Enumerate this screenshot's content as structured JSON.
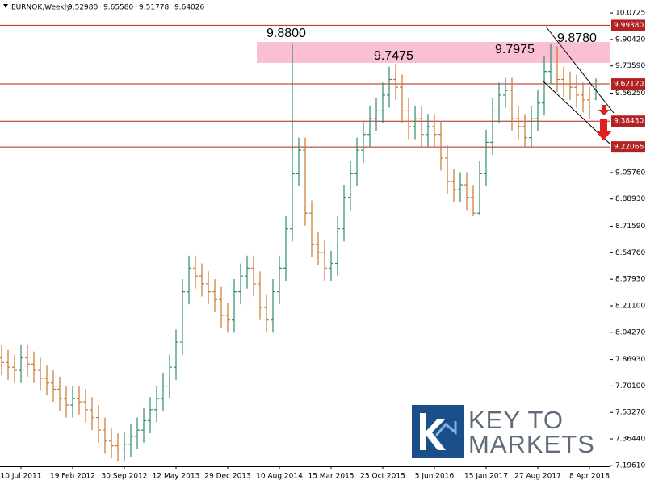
{
  "header": {
    "symbol": "EURNOK,Weekly",
    "open": "9.52980",
    "high": "9.65580",
    "low": "9.51778",
    "close": "9.64026"
  },
  "logo": {
    "line1": "KEY TO",
    "line2": "MARKETS"
  },
  "chart_data": {
    "type": "ohlc",
    "up_color": "#2e8b6e",
    "down_color": "#c8782e",
    "categories": [
      null,
      null,
      null,
      "10 Jul 2011",
      null,
      null,
      null,
      null,
      null,
      null,
      null,
      "19 Feb 2012",
      null,
      null,
      null,
      null,
      null,
      null,
      null,
      "30 Sep 2012",
      null,
      null,
      null,
      null,
      null,
      null,
      null,
      "12 May 2013",
      null,
      null,
      null,
      null,
      null,
      null,
      null,
      "29 Dec 2013",
      null,
      null,
      null,
      null,
      null,
      null,
      null,
      "10 Aug 2014",
      null,
      null,
      null,
      null,
      null,
      null,
      null,
      "15 Mar 2015",
      null,
      null,
      null,
      null,
      null,
      null,
      null,
      "25 Oct 2015",
      null,
      null,
      null,
      null,
      null,
      null,
      null,
      "5 Jun 2016",
      null,
      null,
      null,
      null,
      null,
      null,
      null,
      "15 Jan 2017",
      null,
      null,
      null,
      null,
      null,
      null,
      null,
      "27 Aug 2017",
      null,
      null,
      null,
      null,
      null,
      null,
      null,
      "8 Apr 2018",
      null
    ],
    "open": [
      7.88,
      7.85,
      7.82,
      7.8,
      7.88,
      7.84,
      7.8,
      7.75,
      7.72,
      7.68,
      7.62,
      7.58,
      7.62,
      7.6,
      7.55,
      7.5,
      7.42,
      7.35,
      7.32,
      7.3,
      7.33,
      7.38,
      7.42,
      7.48,
      7.55,
      7.62,
      7.7,
      7.82,
      7.98,
      8.3,
      8.45,
      8.4,
      8.35,
      8.3,
      8.25,
      8.15,
      8.12,
      8.3,
      8.4,
      8.45,
      8.35,
      8.2,
      8.12,
      8.3,
      8.45,
      8.7,
      9.05,
      9.2,
      8.8,
      8.6,
      8.55,
      8.45,
      8.48,
      8.7,
      8.9,
      9.05,
      9.2,
      9.3,
      9.4,
      9.45,
      9.55,
      9.65,
      9.6,
      9.45,
      9.35,
      9.4,
      9.3,
      9.35,
      9.3,
      9.15,
      9.0,
      8.95,
      8.98,
      8.9,
      8.8,
      9.05,
      9.25,
      9.45,
      9.55,
      9.58,
      9.4,
      9.35,
      9.28,
      9.4,
      9.5,
      9.7,
      9.85,
      9.65,
      9.62,
      9.6,
      9.55,
      9.52,
      9.5298
    ],
    "high": [
      7.96,
      7.93,
      7.9,
      7.96,
      7.96,
      7.92,
      7.88,
      7.83,
      7.8,
      7.76,
      7.7,
      7.7,
      7.7,
      7.68,
      7.63,
      7.58,
      7.5,
      7.43,
      7.4,
      7.41,
      7.46,
      7.5,
      7.56,
      7.63,
      7.7,
      7.78,
      7.9,
      8.06,
      8.38,
      8.53,
      8.53,
      8.48,
      8.43,
      8.38,
      8.33,
      8.23,
      8.38,
      8.48,
      8.53,
      8.53,
      8.43,
      8.28,
      8.38,
      8.53,
      8.78,
      9.88,
      9.28,
      9.28,
      8.88,
      8.68,
      8.63,
      8.56,
      8.78,
      8.98,
      9.13,
      9.28,
      9.38,
      9.48,
      9.53,
      9.63,
      9.73,
      9.7475,
      9.68,
      9.53,
      9.48,
      9.48,
      9.43,
      9.43,
      9.38,
      9.23,
      9.08,
      9.06,
      9.06,
      8.98,
      9.13,
      9.33,
      9.53,
      9.63,
      9.66,
      9.66,
      9.48,
      9.43,
      9.48,
      9.58,
      9.7975,
      9.878,
      9.86,
      9.73,
      9.7,
      9.68,
      9.63,
      9.6,
      9.6558
    ],
    "low": [
      7.77,
      7.74,
      7.72,
      7.72,
      7.76,
      7.72,
      7.67,
      7.64,
      7.6,
      7.54,
      7.5,
      7.5,
      7.52,
      7.47,
      7.42,
      7.34,
      7.27,
      7.24,
      7.22,
      7.22,
      7.25,
      7.3,
      7.34,
      7.4,
      7.47,
      7.54,
      7.62,
      7.74,
      7.9,
      8.22,
      8.32,
      8.27,
      8.22,
      8.17,
      8.07,
      8.04,
      8.04,
      8.22,
      8.32,
      8.27,
      8.12,
      8.04,
      8.04,
      8.22,
      8.37,
      8.62,
      8.97,
      8.72,
      8.52,
      8.47,
      8.37,
      8.37,
      8.4,
      8.62,
      8.82,
      8.97,
      9.12,
      9.22,
      9.32,
      9.37,
      9.47,
      9.52,
      9.37,
      9.27,
      9.27,
      9.22,
      9.22,
      9.22,
      9.07,
      8.92,
      8.87,
      8.87,
      8.82,
      8.78,
      8.79,
      8.97,
      9.17,
      9.37,
      9.47,
      9.32,
      9.27,
      9.22,
      9.22,
      9.32,
      9.42,
      9.62,
      9.57,
      9.54,
      9.52,
      9.47,
      9.44,
      9.4,
      9.51778
    ],
    "close": [
      7.85,
      7.82,
      7.8,
      7.88,
      7.84,
      7.8,
      7.75,
      7.72,
      7.68,
      7.62,
      7.58,
      7.62,
      7.6,
      7.55,
      7.5,
      7.42,
      7.35,
      7.32,
      7.3,
      7.33,
      7.38,
      7.42,
      7.48,
      7.55,
      7.62,
      7.7,
      7.82,
      7.98,
      8.3,
      8.45,
      8.4,
      8.35,
      8.3,
      8.25,
      8.15,
      8.12,
      8.3,
      8.4,
      8.45,
      8.35,
      8.2,
      8.12,
      8.3,
      8.45,
      8.7,
      9.05,
      9.2,
      8.8,
      8.6,
      8.55,
      8.45,
      8.48,
      8.7,
      8.9,
      9.05,
      9.2,
      9.3,
      9.4,
      9.45,
      9.55,
      9.65,
      9.6,
      9.45,
      9.35,
      9.4,
      9.3,
      9.35,
      9.3,
      9.15,
      9.0,
      8.95,
      8.98,
      8.9,
      8.8,
      9.05,
      9.25,
      9.45,
      9.55,
      9.58,
      9.4,
      9.35,
      9.28,
      9.4,
      9.5,
      9.7,
      9.85,
      9.65,
      9.62,
      9.6,
      9.55,
      9.52,
      9.48,
      9.64026
    ],
    "ylim": [
      7.19,
      10.155
    ],
    "yticks": [
      {
        "value": 10.0725,
        "label": "10.07250"
      },
      {
        "value": 9.9042,
        "label": "9.90420"
      },
      {
        "value": 9.7359,
        "label": "9.73590"
      },
      {
        "value": 9.5625,
        "label": "9.56250"
      },
      {
        "value": 9.0576,
        "label": "9.05760"
      },
      {
        "value": 8.8893,
        "label": "8.88930"
      },
      {
        "value": 8.7159,
        "label": "8.71590"
      },
      {
        "value": 8.5476,
        "label": "8.54760"
      },
      {
        "value": 8.3793,
        "label": "8.37930"
      },
      {
        "value": 8.211,
        "label": "8.21100"
      },
      {
        "value": 8.0427,
        "label": "8.04270"
      },
      {
        "value": 7.8693,
        "label": "7.86930"
      },
      {
        "value": 7.701,
        "label": "7.70100"
      },
      {
        "value": 7.5327,
        "label": "7.53270"
      },
      {
        "value": 7.3644,
        "label": "7.36440"
      },
      {
        "value": 7.1961,
        "label": "7.19610"
      }
    ],
    "levels": [
      {
        "value": 9.9938,
        "label": "9.99380"
      },
      {
        "value": 9.6212,
        "label": "9.62120"
      },
      {
        "value": 9.3843,
        "label": "9.38430"
      },
      {
        "value": 9.22066,
        "label": "9.22066"
      }
    ],
    "level_color": "#b22222",
    "zone": [
      9.755,
      9.888
    ],
    "zone_color": "#f9c0d2",
    "annotations": [
      "9.8800",
      "9.7475",
      "9.7975",
      "9.8780"
    ]
  }
}
